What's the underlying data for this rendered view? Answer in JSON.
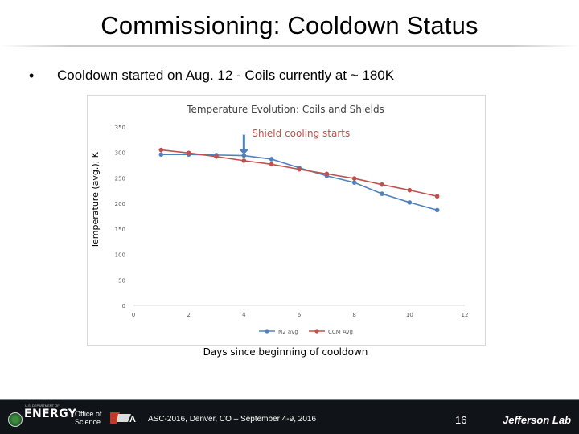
{
  "slide": {
    "title": "Commissioning: Cooldown Status",
    "bullet_marker": "•",
    "bullet": "Cooldown started on Aug. 12  -  Coils currently at  ~ 180K"
  },
  "chart_data": {
    "type": "line",
    "title": "Temperature Evolution: Coils and Shields",
    "xlabel": "Days since beginning of cooldown",
    "ylabel": "Temperature (avg.), K",
    "xlim": [
      0,
      12
    ],
    "ylim": [
      0,
      350
    ],
    "x_ticks": [
      0,
      2,
      4,
      6,
      8,
      10,
      12
    ],
    "y_ticks": [
      0,
      50,
      100,
      150,
      200,
      250,
      300,
      350
    ],
    "grid": false,
    "legend_position": "bottom",
    "annotation": "Shield cooling starts",
    "annotation_x": 4,
    "series": [
      {
        "name": "N2 avg",
        "color": "#4f81bd",
        "x": [
          1,
          2,
          3,
          4,
          5,
          6,
          7,
          8,
          9,
          10,
          11
        ],
        "values": [
          296,
          296,
          295,
          294,
          287,
          270,
          254,
          241,
          219,
          202,
          187
        ]
      },
      {
        "name": "CCM Avg",
        "color": "#c0504d",
        "x": [
          1,
          2,
          3,
          4,
          5,
          6,
          7,
          8,
          9,
          10,
          11
        ],
        "values": [
          305,
          299,
          292,
          284,
          277,
          267,
          258,
          249,
          237,
          226,
          214
        ]
      }
    ]
  },
  "footer": {
    "doe_small": "U.S. DEPARTMENT OF",
    "doe": "ENERGY",
    "office_line1": "Office of",
    "office_line2": "Science",
    "center": "ASC-2016, Denver, CO – September 4-9, 2016",
    "page": "16",
    "lab": "Jefferson Lab",
    "colors": {
      "background": "#101418"
    }
  }
}
